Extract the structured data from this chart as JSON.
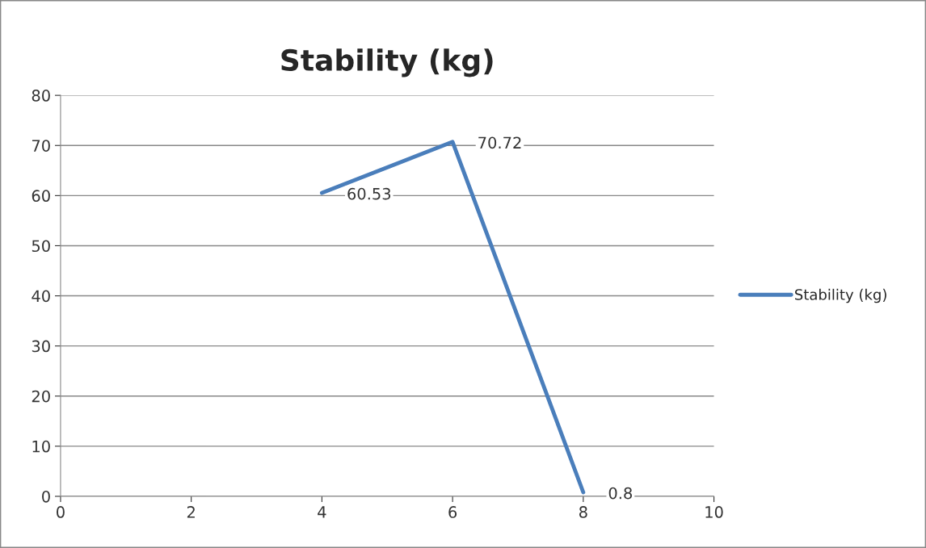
{
  "chart_data": {
    "type": "line",
    "title": "Stability (kg)",
    "x": [
      4,
      6,
      8
    ],
    "series": [
      {
        "name": "Stability (kg)",
        "color": "#4a7ebb",
        "values": [
          60.53,
          70.72,
          0.8
        ]
      }
    ],
    "xlim": [
      0,
      10
    ],
    "xticks": [
      0,
      2,
      4,
      6,
      8,
      10
    ],
    "ylim": [
      0,
      80
    ],
    "yticks": [
      0,
      10,
      20,
      30,
      40,
      50,
      60,
      70,
      80
    ],
    "grid": "y",
    "legend": "right",
    "data_labels": true,
    "marker": "none",
    "line_style": "solid"
  }
}
